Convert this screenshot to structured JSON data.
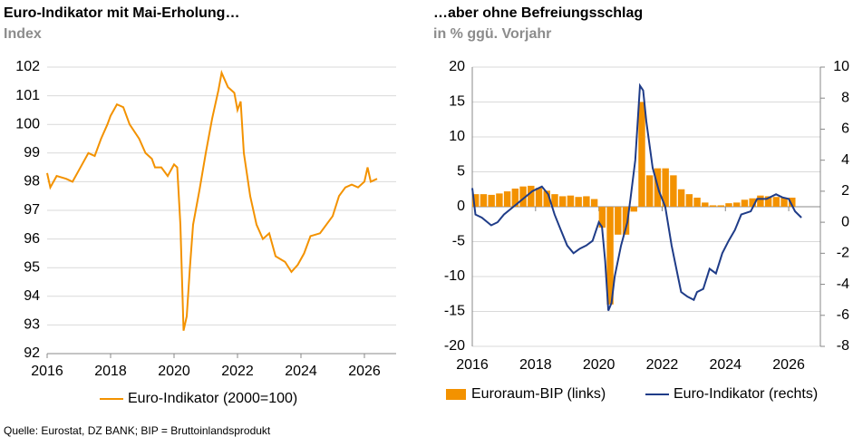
{
  "chart_data": [
    {
      "type": "line",
      "title": "Euro-Indikator mit Mai-Erholung…",
      "subtitle": "Index",
      "xlim": [
        2016,
        2027
      ],
      "xticks": [
        2016,
        2018,
        2020,
        2022,
        2024,
        2026
      ],
      "ylim": [
        92,
        102
      ],
      "yticks": [
        92,
        93,
        94,
        95,
        96,
        97,
        98,
        99,
        100,
        101,
        102
      ],
      "grid": true,
      "series": [
        {
          "name": "Euro-Indikator (2000=100)",
          "color": "#f39200",
          "x": [
            2016.0,
            2016.1,
            2016.3,
            2016.6,
            2016.8,
            2017.0,
            2017.3,
            2017.5,
            2017.7,
            2017.9,
            2018.0,
            2018.2,
            2018.4,
            2018.6,
            2018.9,
            2019.1,
            2019.3,
            2019.4,
            2019.6,
            2019.8,
            2020.0,
            2020.1,
            2020.2,
            2020.3,
            2020.4,
            2020.5,
            2020.6,
            2020.8,
            2021.0,
            2021.2,
            2021.4,
            2021.5,
            2021.7,
            2021.9,
            2022.0,
            2022.1,
            2022.2,
            2022.4,
            2022.6,
            2022.8,
            2023.0,
            2023.2,
            2023.5,
            2023.7,
            2023.9,
            2024.1,
            2024.3,
            2024.6,
            2024.8,
            2025.0,
            2025.2,
            2025.4,
            2025.6,
            2025.8,
            2026.0,
            2026.1,
            2026.2,
            2026.4
          ],
          "values": [
            98.3,
            97.8,
            98.2,
            98.1,
            98.0,
            98.4,
            99.0,
            98.9,
            99.5,
            100.0,
            100.3,
            100.7,
            100.6,
            100.0,
            99.5,
            99.0,
            98.8,
            98.5,
            98.5,
            98.2,
            98.6,
            98.5,
            96.5,
            92.8,
            93.3,
            95.0,
            96.5,
            97.7,
            99.0,
            100.2,
            101.2,
            101.8,
            101.3,
            101.1,
            100.5,
            100.8,
            99.0,
            97.5,
            96.5,
            96.0,
            96.2,
            95.4,
            95.2,
            94.85,
            95.1,
            95.5,
            96.1,
            96.2,
            96.5,
            96.8,
            97.5,
            97.8,
            97.9,
            97.8,
            98.0,
            98.5,
            98.0,
            98.1
          ]
        }
      ]
    },
    {
      "type": "combo",
      "title": "…aber ohne Befreiungsschlag",
      "subtitle": "in % ggü. Vorjahr",
      "xlim": [
        2016,
        2027
      ],
      "xticks": [
        2016,
        2018,
        2020,
        2022,
        2024,
        2026
      ],
      "ylim": [
        -20,
        20
      ],
      "yticks": [
        -20,
        -15,
        -10,
        -5,
        0,
        5,
        10,
        15,
        20
      ],
      "y2lim": [
        -8,
        10
      ],
      "y2ticks": [
        -8,
        -6,
        -4,
        -2,
        0,
        2,
        4,
        6,
        8,
        10
      ],
      "grid": true,
      "series": [
        {
          "name": "Euroraum-BIP (links)",
          "type": "bar",
          "color": "#f39200",
          "x": [
            2016.0,
            2016.25,
            2016.5,
            2016.75,
            2017.0,
            2017.25,
            2017.5,
            2017.75,
            2018.0,
            2018.25,
            2018.5,
            2018.75,
            2019.0,
            2019.25,
            2019.5,
            2019.75,
            2020.0,
            2020.25,
            2020.5,
            2020.75,
            2021.0,
            2021.25,
            2021.5,
            2021.75,
            2022.0,
            2022.25,
            2022.5,
            2022.75,
            2023.0,
            2023.25,
            2023.5,
            2023.75,
            2024.0,
            2024.25,
            2024.5,
            2024.75,
            2025.0,
            2025.25,
            2025.5,
            2025.75,
            2026.0
          ],
          "values": [
            1.8,
            1.8,
            1.7,
            1.9,
            2.2,
            2.6,
            2.9,
            3.0,
            2.7,
            2.3,
            1.8,
            1.5,
            1.6,
            1.4,
            1.5,
            1.1,
            -3.0,
            -14.0,
            -4.0,
            -4.0,
            -0.7,
            15.0,
            4.5,
            5.5,
            5.5,
            4.5,
            2.5,
            1.8,
            1.3,
            0.6,
            0.2,
            0.2,
            0.5,
            0.6,
            1.0,
            1.2,
            1.6,
            1.5,
            1.4,
            1.3,
            1.3
          ]
        },
        {
          "name": "Euro-Indikator (rechts)",
          "type": "line",
          "axis": "y2",
          "color": "#1f3c88",
          "x": [
            2016.0,
            2016.1,
            2016.3,
            2016.6,
            2016.8,
            2017.0,
            2017.3,
            2017.6,
            2017.9,
            2018.2,
            2018.4,
            2018.6,
            2018.8,
            2019.0,
            2019.2,
            2019.4,
            2019.6,
            2019.8,
            2020.0,
            2020.1,
            2020.2,
            2020.3,
            2020.4,
            2020.5,
            2020.7,
            2020.9,
            2021.0,
            2021.15,
            2021.3,
            2021.4,
            2021.5,
            2021.7,
            2021.9,
            2022.1,
            2022.3,
            2022.5,
            2022.6,
            2022.8,
            2023.0,
            2023.1,
            2023.3,
            2023.5,
            2023.7,
            2023.9,
            2024.1,
            2024.3,
            2024.5,
            2024.8,
            2025.0,
            2025.3,
            2025.6,
            2025.8,
            2026.0,
            2026.2,
            2026.4
          ],
          "values": [
            2.2,
            0.5,
            0.3,
            -0.2,
            0.0,
            0.5,
            1.0,
            1.5,
            2.0,
            2.3,
            1.8,
            0.5,
            -0.5,
            -1.5,
            -2.0,
            -1.7,
            -1.5,
            -1.2,
            0.0,
            -0.3,
            -2.5,
            -5.7,
            -5.2,
            -3.5,
            -1.5,
            0.0,
            1.5,
            4.0,
            8.8,
            8.5,
            6.5,
            3.5,
            2.0,
            1.0,
            -1.5,
            -3.5,
            -4.5,
            -4.8,
            -5.0,
            -4.5,
            -4.3,
            -3.0,
            -3.3,
            -2.0,
            -1.2,
            -0.5,
            0.5,
            0.7,
            1.5,
            1.5,
            1.8,
            1.6,
            1.5,
            0.7,
            0.3
          ]
        }
      ]
    }
  ],
  "source": "Quelle: Eurostat, DZ BANK; BIP = Bruttoinlandsprodukt"
}
